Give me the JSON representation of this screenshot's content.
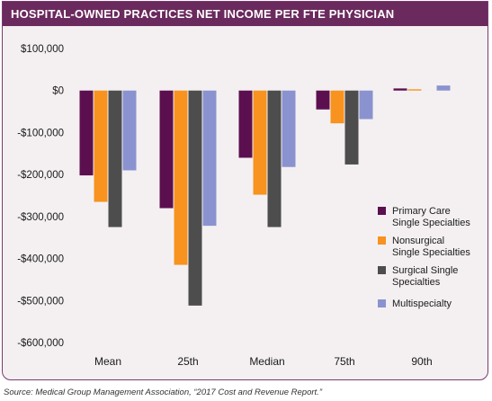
{
  "header": {
    "title": "HOSPITAL-OWNED PRACTICES NET INCOME PER FTE PHYSICIAN"
  },
  "source": "Source: Medical Group Management Association, “2017 Cost and Revenue Report.”",
  "chart_data": {
    "type": "bar",
    "title": "HOSPITAL-OWNED PRACTICES NET INCOME PER FTE PHYSICIAN",
    "categories": [
      "Mean",
      "25th",
      "Median",
      "75th",
      "90th"
    ],
    "ylim": [
      -600000,
      100000
    ],
    "yticks": [
      100000,
      0,
      -100000,
      -200000,
      -300000,
      -400000,
      -500000,
      -600000
    ],
    "ytick_labels": [
      "$100,000",
      "$0",
      "-$100,000",
      "-$200,000",
      "-$300,000",
      "-$400,000",
      "-$500,000",
      "-$600,000"
    ],
    "grid": false,
    "legend_position": "right",
    "series": [
      {
        "name": "Primary Care Single Specialties",
        "legend_lines": [
          "Primary Care",
          "Single Specialties"
        ],
        "color": "#5c0f4f",
        "values": [
          -202000,
          -280000,
          -160000,
          -45000,
          5000
        ]
      },
      {
        "name": "Nonsurgical Single Specialties",
        "legend_lines": [
          "Nonsurgical",
          "Single Specialties"
        ],
        "color": "#f7931e",
        "values": [
          -265000,
          -415000,
          -248000,
          -78000,
          3000
        ]
      },
      {
        "name": "Surgical Single Specialties",
        "legend_lines": [
          "Surgical Single",
          "Specialties"
        ],
        "color": "#4d4d4d",
        "values": [
          -325000,
          -512000,
          -325000,
          -176000,
          0
        ]
      },
      {
        "name": "Multispecialty",
        "legend_lines": [
          "Multispecialty"
        ],
        "color": "#8a93cf",
        "values": [
          -190000,
          -322000,
          -182000,
          -68000,
          12000
        ]
      }
    ]
  }
}
